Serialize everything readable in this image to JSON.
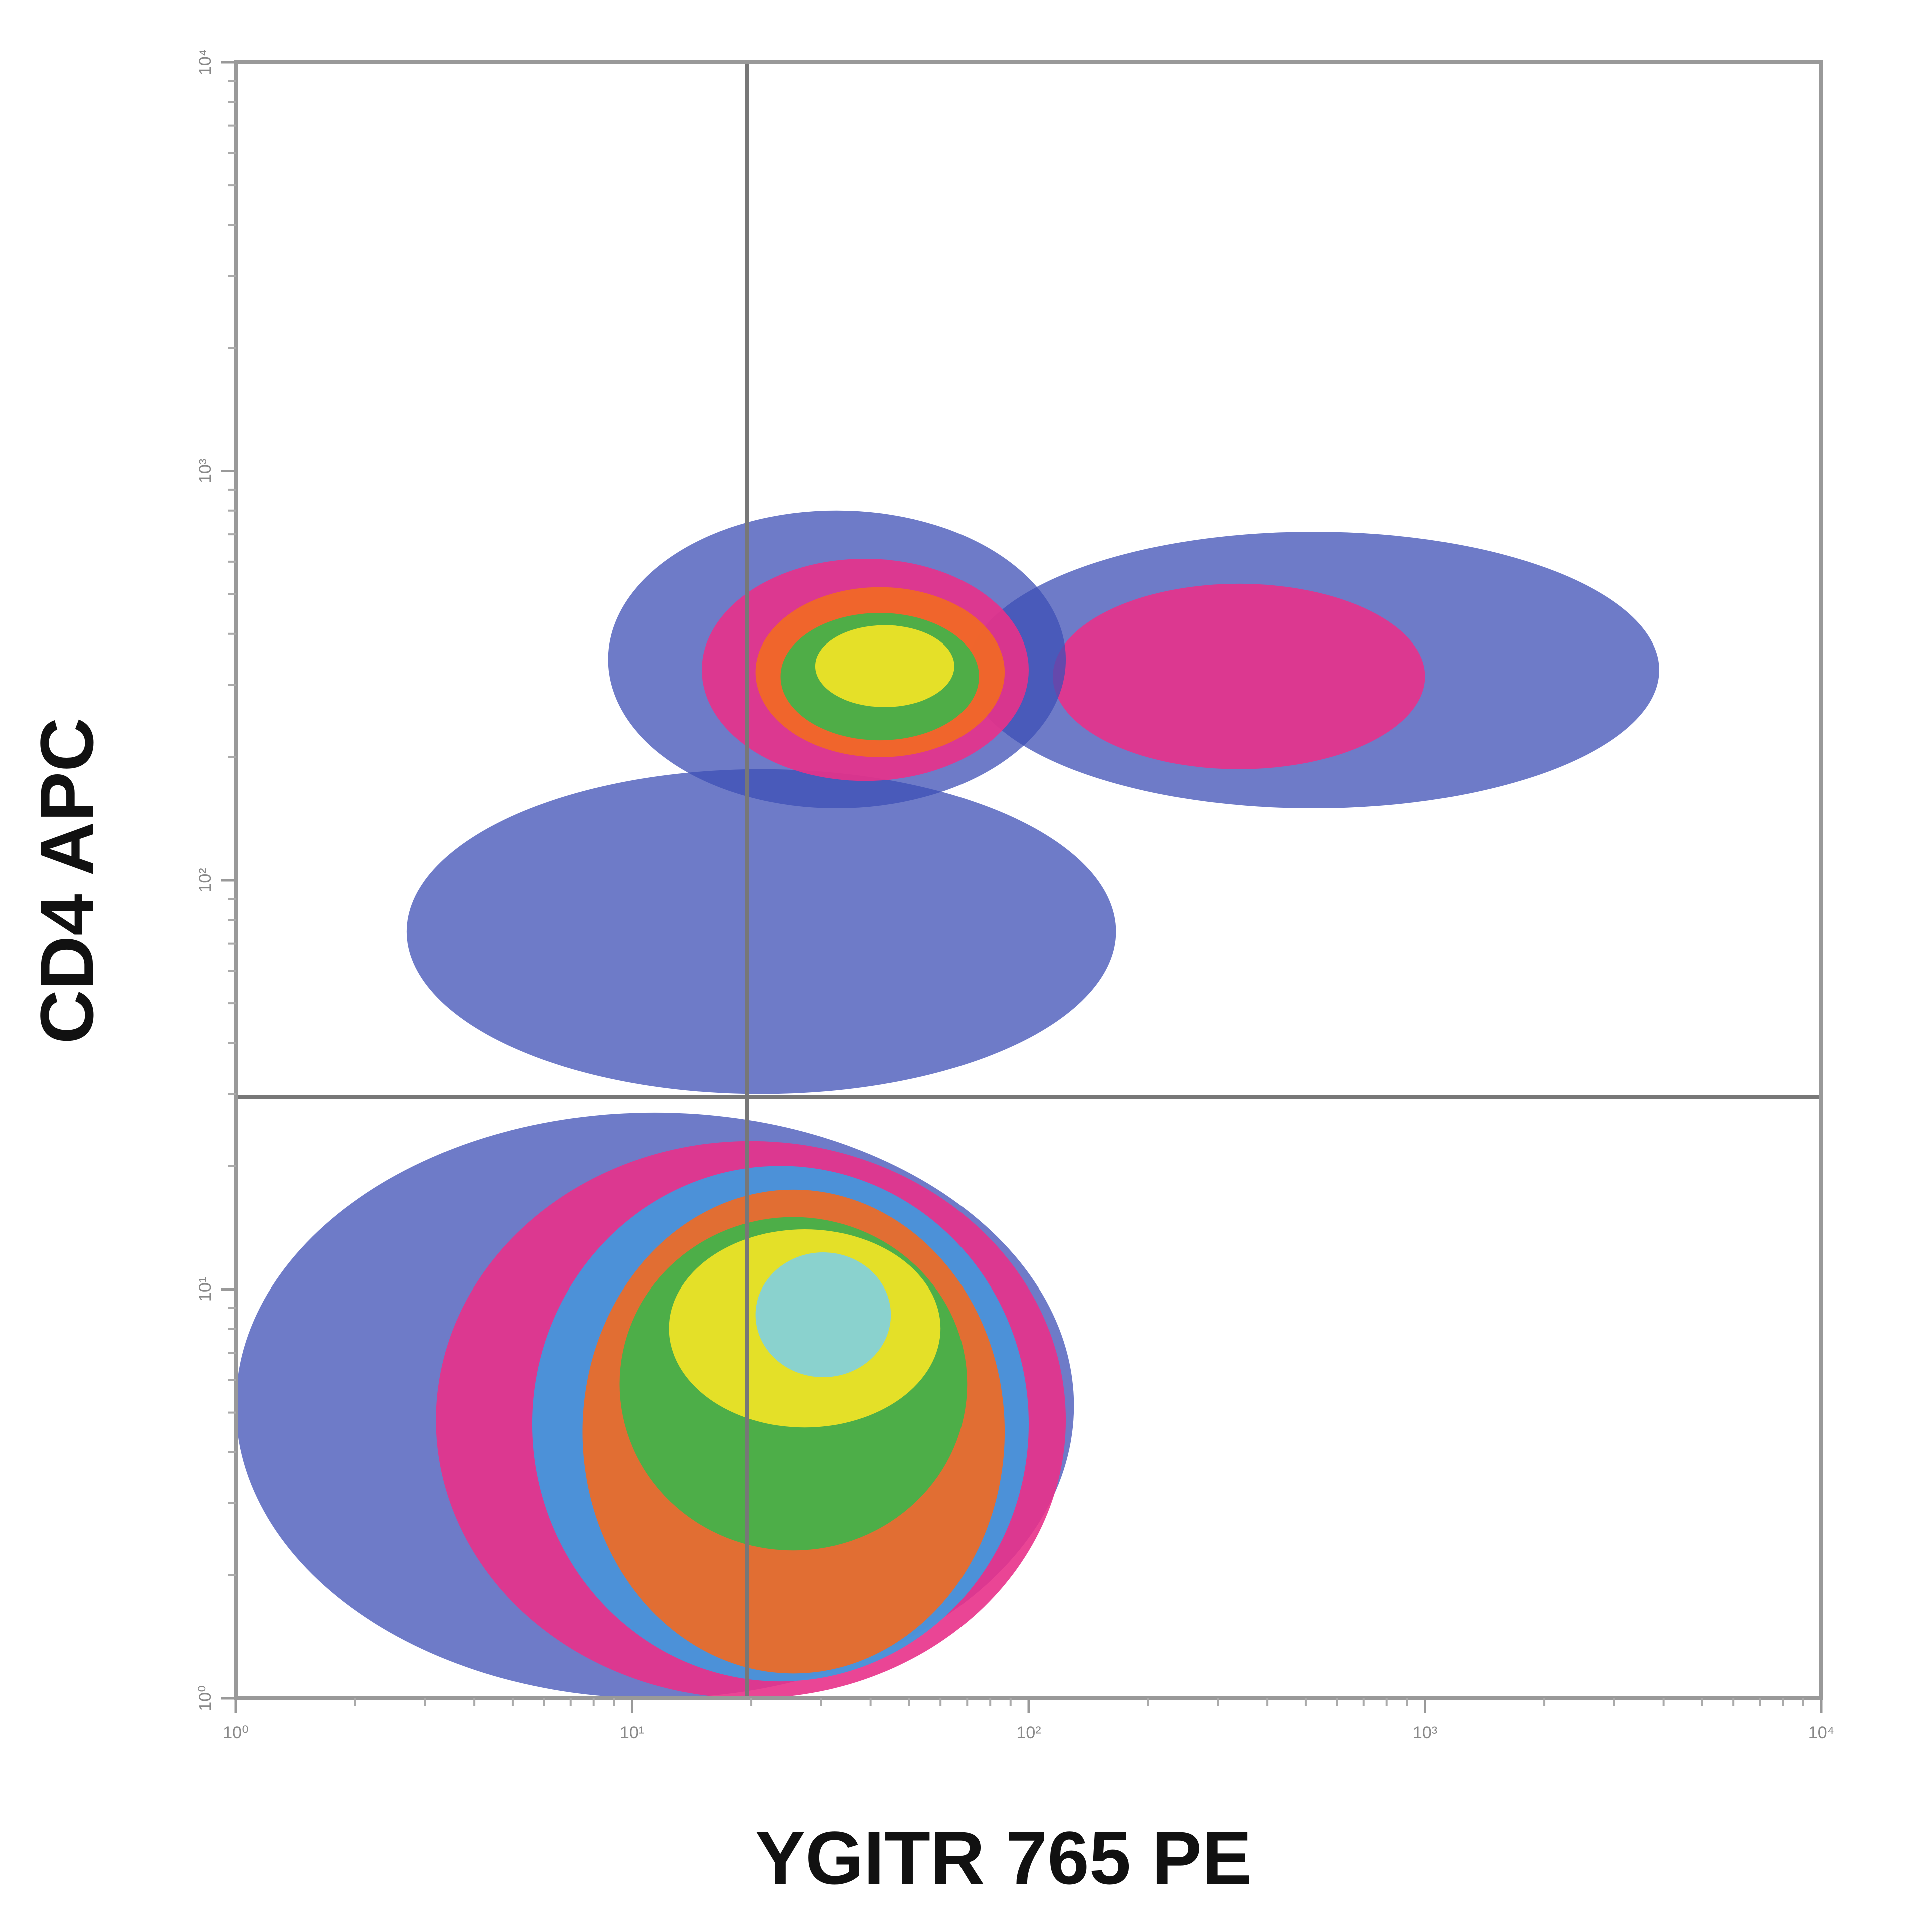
{
  "chart_data": {
    "type": "density",
    "x_label": "YGITR 765 PE",
    "y_label": "CD4 APC",
    "xscale": "log",
    "yscale": "log",
    "xlim": [
      1,
      10000
    ],
    "ylim": [
      1,
      10000
    ],
    "xticks": [
      {
        "value": 1,
        "label": "10⁰"
      },
      {
        "value": 10,
        "label": "10¹"
      },
      {
        "value": 100,
        "label": "10²"
      },
      {
        "value": 1000,
        "label": "10³"
      },
      {
        "value": 10000,
        "label": "10⁴"
      }
    ],
    "yticks": [
      {
        "value": 1,
        "label": "10⁰"
      },
      {
        "value": 10,
        "label": "10¹"
      },
      {
        "value": 100,
        "label": "10²"
      },
      {
        "value": 1000,
        "label": "10³"
      },
      {
        "value": 10000,
        "label": "10⁴"
      }
    ],
    "gates": {
      "x": 19.5,
      "y": 29.5
    },
    "clusters": [
      {
        "levels": [
          {
            "color": "#3d4fb5",
            "x_lo": 2.7,
            "x_hi": 166,
            "y_lo": 30,
            "y_hi": 187
          }
        ]
      },
      {
        "levels": [
          {
            "color": "#3d4fb5",
            "x_lo": 1,
            "x_hi": 130,
            "y_lo": 1,
            "y_hi": 27
          },
          {
            "color": "#e8318a",
            "x_lo": 3.2,
            "x_hi": 124,
            "y_lo": 1,
            "y_hi": 23
          },
          {
            "color": "#3c9be0",
            "x_lo": 5.6,
            "x_hi": 100,
            "y_lo": 1.1,
            "y_hi": 20
          },
          {
            "color": "#f26a21",
            "x_lo": 7.5,
            "x_hi": 87,
            "y_lo": 1.15,
            "y_hi": 17.5
          },
          {
            "color": "#3db54a",
            "x_lo": 9.3,
            "x_hi": 70,
            "y_lo": 2.3,
            "y_hi": 15
          },
          {
            "color": "#f5e625",
            "x_lo": 12.4,
            "x_hi": 60,
            "y_lo": 4.6,
            "y_hi": 14
          },
          {
            "color": "#7fd0e0",
            "x_lo": 20.5,
            "x_hi": 45,
            "y_lo": 6.1,
            "y_hi": 12.3
          }
        ]
      },
      {
        "levels": [
          {
            "color": "#3d4fb5",
            "x_lo": 70,
            "x_hi": 3900,
            "y_lo": 150,
            "y_hi": 710
          },
          {
            "color": "#e8318a",
            "x_lo": 115,
            "x_hi": 1000,
            "y_lo": 187,
            "y_hi": 530
          }
        ]
      },
      {
        "levels": [
          {
            "color": "#3d4fb5",
            "x_lo": 8.7,
            "x_hi": 124,
            "y_lo": 150,
            "y_hi": 800
          },
          {
            "color": "#e8318a",
            "x_lo": 15,
            "x_hi": 100,
            "y_lo": 175,
            "y_hi": 610
          },
          {
            "color": "#f26a21",
            "x_lo": 20.5,
            "x_hi": 87,
            "y_lo": 200,
            "y_hi": 520
          },
          {
            "color": "#3db54a",
            "x_lo": 23.7,
            "x_hi": 75,
            "y_lo": 220,
            "y_hi": 450
          },
          {
            "color": "#f5e625",
            "x_lo": 29,
            "x_hi": 65,
            "y_lo": 265,
            "y_hi": 420
          }
        ]
      }
    ]
  }
}
